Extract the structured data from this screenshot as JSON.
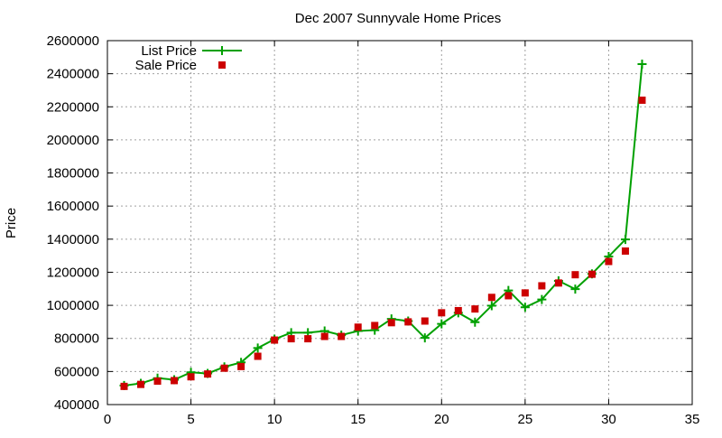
{
  "chart_data": {
    "type": "line",
    "title": "Dec 2007 Sunnyvale Home Prices",
    "xlabel": "",
    "ylabel": "Price",
    "xlim": [
      0,
      35
    ],
    "ylim": [
      400000,
      2600000
    ],
    "x_ticks": [
      0,
      5,
      10,
      15,
      20,
      25,
      30,
      35
    ],
    "y_ticks": [
      400000,
      600000,
      800000,
      1000000,
      1200000,
      1400000,
      1600000,
      1800000,
      2000000,
      2200000,
      2400000,
      2600000
    ],
    "x_tick_labels": [
      "0",
      "5",
      "10",
      "15",
      "20",
      "25",
      "30",
      "35"
    ],
    "y_tick_labels": [
      "400000",
      "600000",
      "800000",
      "1000000",
      "1200000",
      "1400000",
      "1600000",
      "1800000",
      "2000000",
      "2200000",
      "2400000",
      "2600000"
    ],
    "grid": true,
    "legend_position": "top-left",
    "series": [
      {
        "name": "List Price",
        "style": "line-with-plus",
        "color": "#00a000",
        "x": [
          1,
          2,
          3,
          4,
          5,
          6,
          7,
          8,
          9,
          10,
          11,
          12,
          13,
          14,
          15,
          16,
          17,
          18,
          19,
          20,
          21,
          22,
          23,
          24,
          25,
          26,
          27,
          28,
          29,
          30,
          31,
          32
        ],
        "values": [
          515000,
          528000,
          560000,
          550000,
          595000,
          588000,
          628000,
          655000,
          742000,
          795000,
          835000,
          835000,
          845000,
          820000,
          845000,
          850000,
          918000,
          905000,
          803000,
          888000,
          955000,
          898000,
          998000,
          1090000,
          988000,
          1035000,
          1148000,
          1098000,
          1190000,
          1295000,
          1398000,
          2458000
        ]
      },
      {
        "name": "Sale Price",
        "style": "square-markers",
        "color": "#cc0000",
        "x": [
          1,
          2,
          3,
          4,
          5,
          6,
          7,
          8,
          9,
          10,
          11,
          12,
          13,
          14,
          15,
          16,
          17,
          18,
          19,
          20,
          21,
          22,
          23,
          24,
          25,
          26,
          27,
          28,
          29,
          30,
          31,
          32
        ],
        "values": [
          510000,
          522000,
          542000,
          545000,
          568000,
          585000,
          620000,
          630000,
          692000,
          790000,
          798000,
          798000,
          812000,
          812000,
          868000,
          878000,
          895000,
          900000,
          905000,
          955000,
          968000,
          978000,
          1048000,
          1058000,
          1075000,
          1118000,
          1135000,
          1185000,
          1188000,
          1265000,
          1328000,
          2240000
        ]
      }
    ]
  }
}
